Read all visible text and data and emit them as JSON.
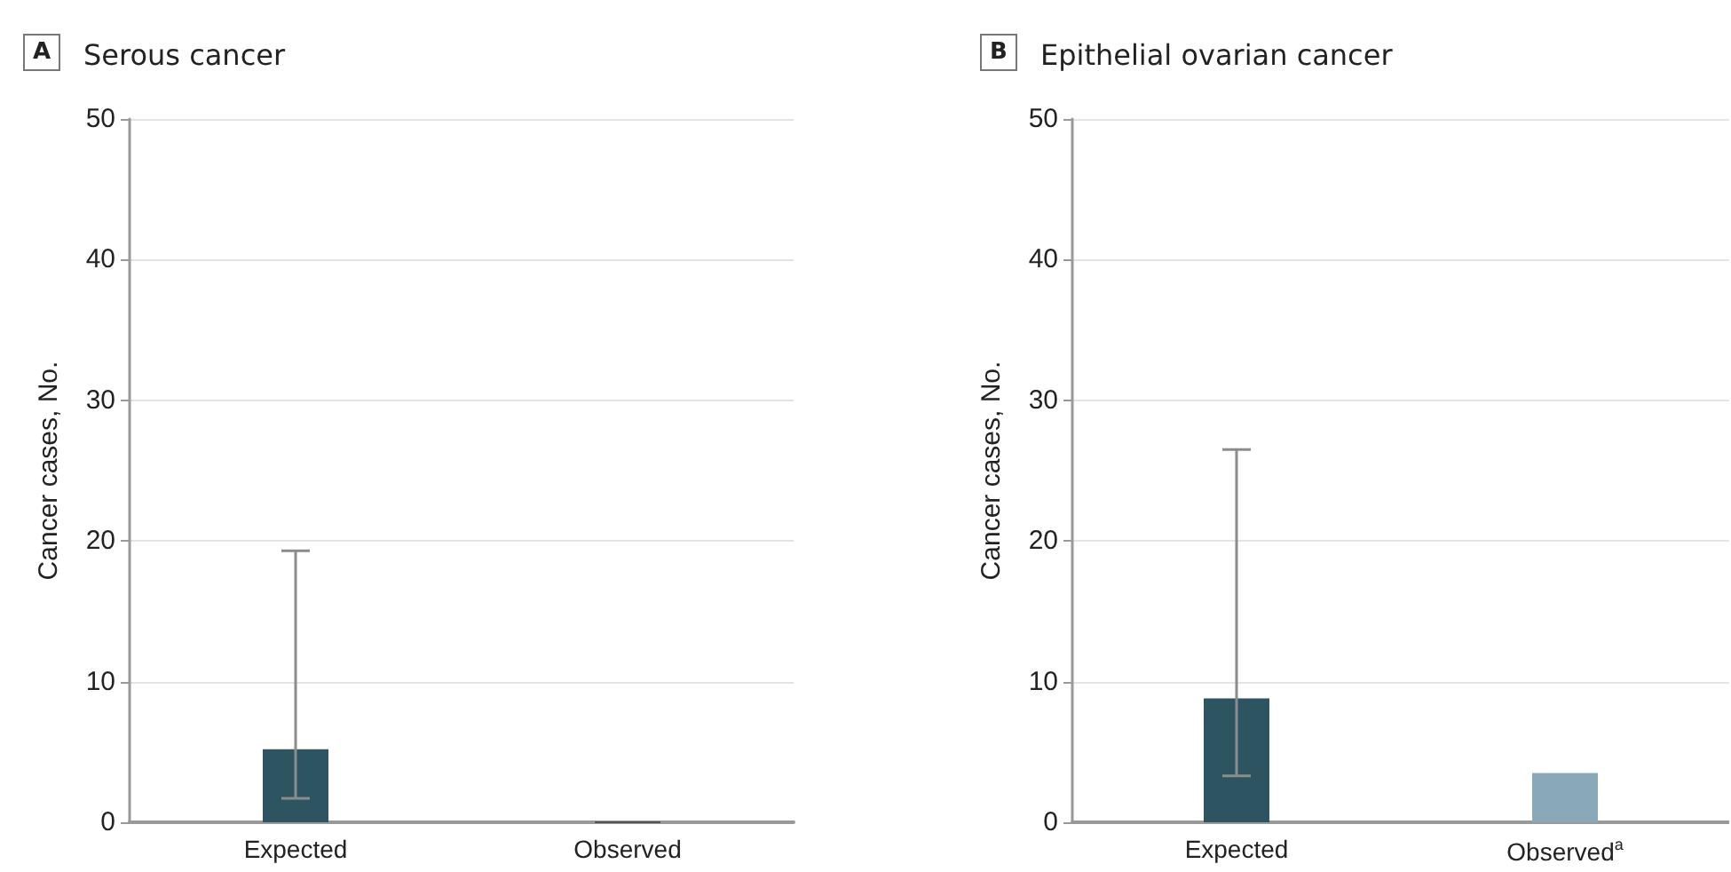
{
  "chart_data": [
    {
      "type": "bar",
      "title": "Serous cancer",
      "annotations": [
        "A"
      ],
      "ylabel": "Cancer cases, No.",
      "categories": [
        "Expected",
        "Observed"
      ],
      "values": [
        5.2,
        0
      ],
      "colors": [
        "#2d5561",
        "#555555"
      ],
      "errors": [
        [
          1.7,
          19.3
        ],
        null
      ],
      "ylim": [
        0,
        50
      ],
      "yticks": [
        0,
        10,
        20,
        30,
        40,
        50
      ],
      "grid": "y"
    },
    {
      "type": "bar",
      "title": "Epithelial ovarian cancer",
      "annotations": [
        "B"
      ],
      "ylabel": "Cancer cases, No.",
      "categories": [
        "Expected",
        "Observed$^{a}$"
      ],
      "values": [
        8.8,
        3.5
      ],
      "colors": [
        "#2d5561",
        "#8aa9b8"
      ],
      "errors": [
        [
          3.3,
          26.5
        ],
        null
      ],
      "ylim": [
        0,
        50
      ],
      "yticks": [
        0,
        10,
        20,
        30,
        40,
        50
      ],
      "grid": "y"
    }
  ]
}
